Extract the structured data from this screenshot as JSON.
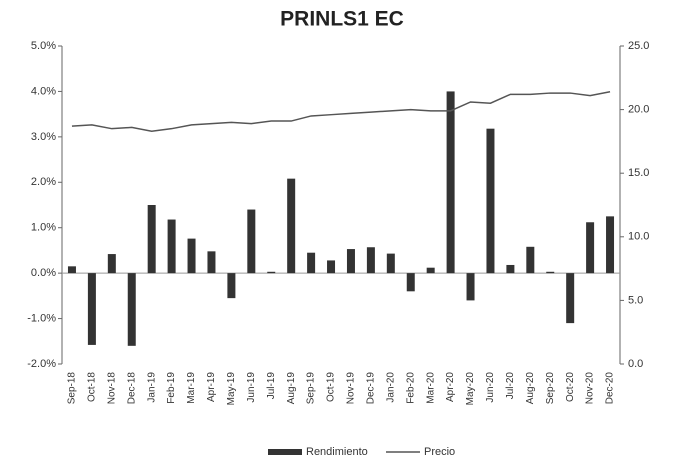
{
  "chart_data": {
    "type": "bar_line",
    "title": "PRINLS1 EC",
    "categories": [
      "Sep-18",
      "Oct-18",
      "Nov-18",
      "Dec-18",
      "Jan-19",
      "Feb-19",
      "Mar-19",
      "Apr-19",
      "May-19",
      "Jun-19",
      "Jul-19",
      "Aug-19",
      "Sep-19",
      "Oct-19",
      "Nov-19",
      "Dec-19",
      "Jan-20",
      "Feb-20",
      "Mar-20",
      "Apr-20",
      "May-20",
      "Jun-20",
      "Jul-20",
      "Aug-20",
      "Sep-20",
      "Oct-20",
      "Nov-20",
      "Dec-20"
    ],
    "series": [
      {
        "name": "Rendimiento",
        "type": "bar",
        "color": "#333333",
        "values": [
          0.15,
          -1.58,
          0.42,
          -1.6,
          1.5,
          1.18,
          0.76,
          0.48,
          -0.55,
          1.4,
          0.03,
          2.08,
          0.45,
          0.28,
          0.53,
          0.57,
          0.43,
          -0.4,
          0.12,
          4.0,
          -0.6,
          3.18,
          0.18,
          0.58,
          0.03,
          -1.1,
          1.12,
          1.25
        ]
      },
      {
        "name": "Precio",
        "type": "line",
        "axis": "y2",
        "color": "#555555",
        "values": [
          18.7,
          18.8,
          18.5,
          18.6,
          18.3,
          18.5,
          18.8,
          18.9,
          19.0,
          18.9,
          19.1,
          19.1,
          19.5,
          19.6,
          19.7,
          19.8,
          19.9,
          20.0,
          19.9,
          19.9,
          20.6,
          20.5,
          21.2,
          21.2,
          21.3,
          21.3,
          21.1,
          21.4
        ]
      }
    ],
    "ylim": [
      -2,
      5
    ],
    "yticks": [
      {
        "value": -2,
        "label": "-2.0%"
      },
      {
        "value": -1,
        "label": "-1.0%"
      },
      {
        "value": 0,
        "label": "0.0%"
      },
      {
        "value": 1,
        "label": "1.0%"
      },
      {
        "value": 2,
        "label": "2.0%"
      },
      {
        "value": 3,
        "label": "3.0%"
      },
      {
        "value": 4,
        "label": "4.0%"
      },
      {
        "value": 5,
        "label": "5.0%"
      }
    ],
    "y2lim": [
      0,
      25
    ],
    "y2ticks": [
      {
        "value": 0,
        "label": "0.0"
      },
      {
        "value": 5,
        "label": "5.0"
      },
      {
        "value": 10,
        "label": "10.0"
      },
      {
        "value": 15,
        "label": "15.0"
      },
      {
        "value": 20,
        "label": "20.0"
      },
      {
        "value": 25,
        "label": "25.0"
      }
    ],
    "legend": "bottom"
  }
}
